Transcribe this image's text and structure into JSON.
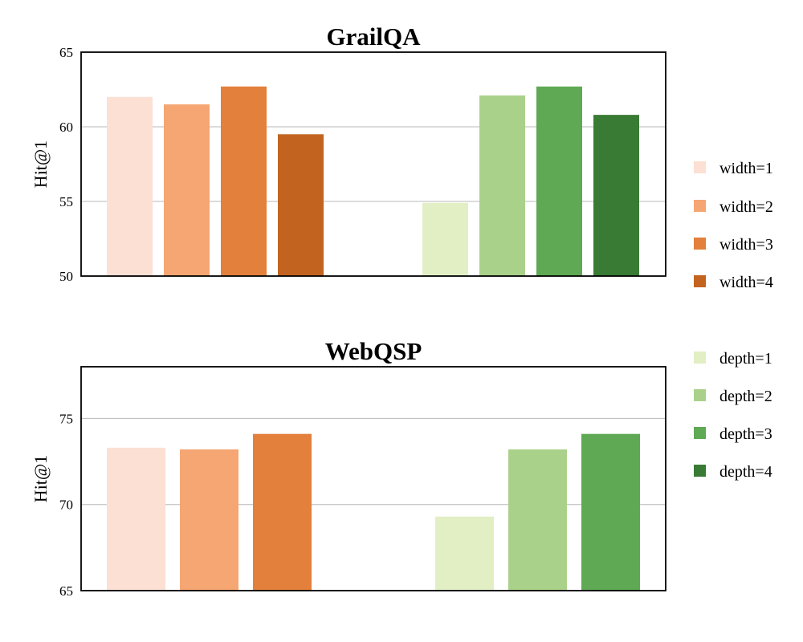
{
  "chart_data": [
    {
      "type": "bar",
      "title": "GrailQA",
      "ylabel": "Hit@1",
      "xlabel": "",
      "ylim": [
        50,
        65
      ],
      "yticks": [
        "50",
        "55",
        "60",
        "65"
      ],
      "grid": "horizontal",
      "groups": [
        {
          "series": [
            "width=1",
            "width=2",
            "width=3",
            "width=4"
          ],
          "values": [
            62.0,
            61.5,
            62.7,
            59.5
          ]
        },
        {
          "series": [
            "depth=1",
            "depth=2",
            "depth=3",
            "depth=4"
          ],
          "values": [
            54.9,
            62.1,
            62.7,
            60.8
          ]
        }
      ]
    },
    {
      "type": "bar",
      "title": "WebQSP",
      "ylabel": "Hit@1",
      "xlabel": "",
      "ylim": [
        65,
        78
      ],
      "yticks": [
        "65",
        "70",
        "75"
      ],
      "grid": "horizontal",
      "groups": [
        {
          "series": [
            "width=1",
            "width=2",
            "width=3"
          ],
          "values": [
            73.3,
            73.2,
            74.1
          ]
        },
        {
          "series": [
            "depth=1",
            "depth=2",
            "depth=3"
          ],
          "values": [
            69.3,
            73.2,
            74.1
          ]
        }
      ]
    }
  ],
  "legend": {
    "placement": "right",
    "items": [
      {
        "label": "width=1",
        "color": "#fce0d3"
      },
      {
        "label": "width=2",
        "color": "#f5a672"
      },
      {
        "label": "width=3",
        "color": "#e3803b"
      },
      {
        "label": "width=4",
        "color": "#c26420"
      },
      {
        "label": "depth=1",
        "color": "#e2eec4"
      },
      {
        "label": "depth=2",
        "color": "#aad18a"
      },
      {
        "label": "depth=3",
        "color": "#5fa954"
      },
      {
        "label": "depth=4",
        "color": "#397b34"
      }
    ]
  }
}
